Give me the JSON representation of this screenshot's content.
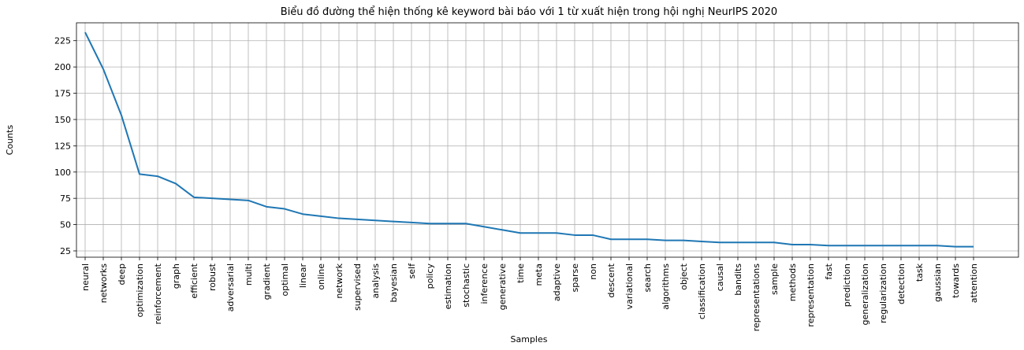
{
  "chart_data": {
    "type": "line",
    "title": "Biểu đồ đường thể hiện thống kê keyword bài báo với 1 từ xuất hiện trong hội nghị NeurIPS 2020",
    "xlabel": "Samples",
    "ylabel": "Counts",
    "ylim": [
      19,
      242
    ],
    "yticks": [
      25,
      50,
      75,
      100,
      125,
      150,
      175,
      200,
      225
    ],
    "grid": true,
    "line_color": "#1f77b4",
    "categories": [
      "neural",
      "networks",
      "deep",
      "optimization",
      "reinforcement",
      "graph",
      "efficient",
      "robust",
      "adversarial",
      "multi",
      "gradient",
      "optimal",
      "linear",
      "online",
      "network",
      "supervised",
      "analysis",
      "bayesian",
      "self",
      "policy",
      "estimation",
      "stochastic",
      "inference",
      "generative",
      "time",
      "meta",
      "adaptive",
      "sparse",
      "non",
      "descent",
      "variational",
      "search",
      "algorithms",
      "object",
      "classification",
      "causal",
      "bandits",
      "representations",
      "sample",
      "methods",
      "representation",
      "fast",
      "prediction",
      "generalization",
      "regularization",
      "detection",
      "task",
      "gaussian",
      "towards",
      "attention"
    ],
    "series": [
      {
        "values": [
          233,
          198,
          154,
          98,
          96,
          89,
          76,
          75,
          74,
          73,
          67,
          65,
          60,
          58,
          56,
          55,
          54,
          53,
          52,
          51,
          51,
          51,
          48,
          45,
          42,
          42,
          42,
          40,
          40,
          36,
          36,
          36,
          35,
          35,
          34,
          33,
          33,
          33,
          33,
          31,
          31,
          30,
          30,
          30,
          30,
          30,
          30,
          30,
          29,
          29
        ]
      }
    ]
  }
}
